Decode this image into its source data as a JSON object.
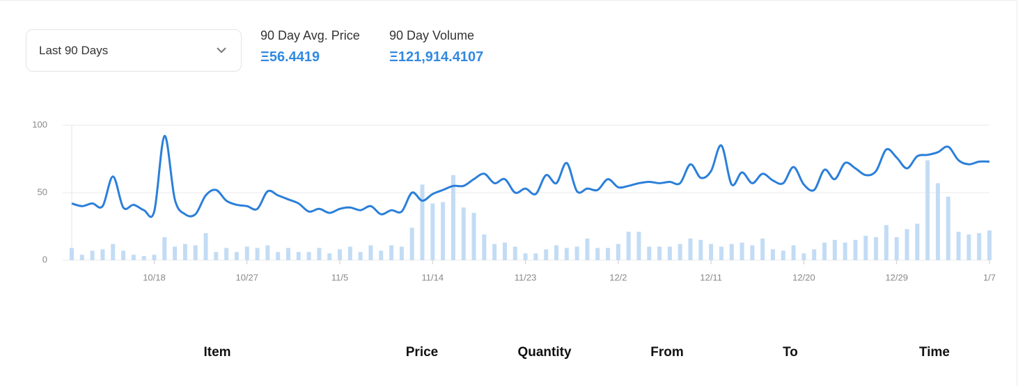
{
  "filter": {
    "label": "Last 90 Days"
  },
  "stats": [
    {
      "label": "90 Day Avg. Price",
      "value": "Ξ56.4419"
    },
    {
      "label": "90 Day Volume",
      "value": "Ξ121,914.4107"
    }
  ],
  "chart_data": {
    "type": "combo",
    "categories": [
      null,
      null,
      null,
      null,
      null,
      null,
      null,
      null,
      "10/18",
      null,
      null,
      null,
      null,
      null,
      null,
      null,
      null,
      "10/27",
      null,
      null,
      null,
      null,
      null,
      null,
      null,
      null,
      "11/5",
      null,
      null,
      null,
      null,
      null,
      null,
      null,
      null,
      "11/14",
      null,
      null,
      null,
      null,
      null,
      null,
      null,
      null,
      "11/23",
      null,
      null,
      null,
      null,
      null,
      null,
      null,
      null,
      "12/2",
      null,
      null,
      null,
      null,
      null,
      null,
      null,
      null,
      "12/11",
      null,
      null,
      null,
      null,
      null,
      null,
      null,
      null,
      "12/20",
      null,
      null,
      null,
      null,
      null,
      null,
      null,
      null,
      "12/29",
      null,
      null,
      null,
      null,
      null,
      null,
      null,
      null,
      "1/7"
    ],
    "series": [
      {
        "type": "bar",
        "color": "#c3dcf5",
        "values": [
          9,
          4,
          7,
          8,
          12,
          7,
          4,
          3,
          4,
          17,
          10,
          12,
          11,
          20,
          6,
          9,
          6,
          10,
          9,
          11,
          6,
          9,
          6,
          6,
          9,
          5,
          8,
          10,
          6,
          11,
          7,
          11,
          10,
          24,
          56,
          42,
          43,
          63,
          39,
          35,
          19,
          12,
          13,
          10,
          5,
          5,
          8,
          11,
          9,
          10,
          16,
          9,
          9,
          12,
          21,
          21,
          10,
          10,
          10,
          12,
          16,
          15,
          12,
          10,
          12,
          13,
          11,
          16,
          8,
          7,
          11,
          5,
          8,
          13,
          15,
          13,
          15,
          18,
          17,
          26,
          17,
          23,
          27,
          74,
          57,
          47,
          21,
          19,
          20,
          22
        ]
      },
      {
        "type": "line",
        "color": "#2b7fd9",
        "values": [
          42,
          40,
          42,
          40,
          62,
          39,
          41,
          37,
          36,
          92,
          45,
          34,
          34,
          48,
          52,
          44,
          41,
          40,
          38,
          51,
          48,
          45,
          42,
          36,
          38,
          35,
          38,
          39,
          37,
          40,
          34,
          37,
          36,
          50,
          44,
          49,
          52,
          55,
          55,
          60,
          64,
          57,
          60,
          50,
          53,
          49,
          63,
          57,
          72,
          51,
          53,
          52,
          60,
          54,
          55,
          57,
          58,
          57,
          58,
          57,
          71,
          61,
          66,
          85,
          56,
          65,
          57,
          64,
          59,
          57,
          69,
          56,
          52,
          67,
          60,
          72,
          68,
          63,
          66,
          82,
          76,
          68,
          77,
          78,
          80,
          84,
          74,
          71,
          73,
          73
        ]
      }
    ],
    "ylim": [
      0,
      100
    ],
    "yticks": [
      0,
      50,
      100
    ],
    "grid": true
  },
  "table": {
    "columns": [
      "Item",
      "Price",
      "Quantity",
      "From",
      "To",
      "Time"
    ]
  }
}
